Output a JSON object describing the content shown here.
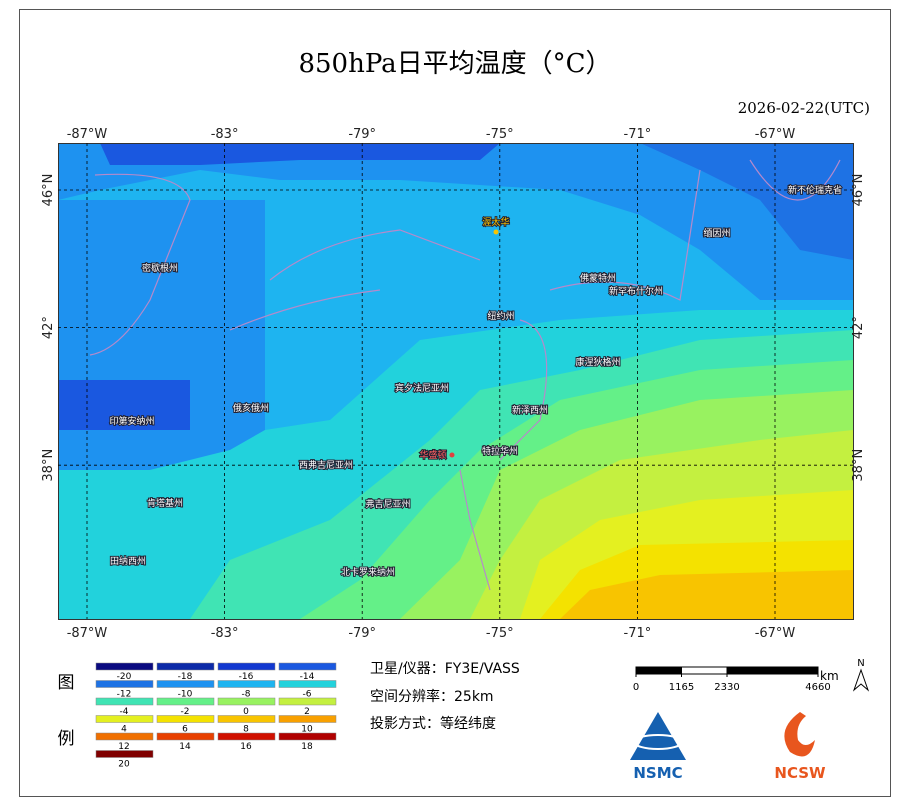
{
  "title": "850hPa日平均温度（°C）",
  "date": "2026-02-22(UTC)",
  "map": {
    "lon_ticks": [
      {
        "value": -87,
        "label": "-87°W"
      },
      {
        "value": -83,
        "label": "-83°"
      },
      {
        "value": -79,
        "label": "-79°"
      },
      {
        "value": -75,
        "label": "-75°"
      },
      {
        "value": -71,
        "label": "-71°"
      },
      {
        "value": -67,
        "label": "-67°W"
      }
    ],
    "lat_ticks": [
      {
        "value": 46,
        "label": "46°N"
      },
      {
        "value": 42,
        "label": "42°"
      },
      {
        "value": 38,
        "label": "38°N"
      }
    ],
    "places": [
      "渥太华",
      "密歇根州",
      "缅因州",
      "佛蒙特州",
      "新罕布什尔州",
      "纽约州",
      "康涅狄格州",
      "宾夕法尼亚州",
      "新泽西州",
      "俄亥俄州",
      "印第安纳州",
      "华盛顿",
      "特拉华州",
      "西弗吉尼亚州",
      "肯塔基州",
      "弗吉尼亚州",
      "田纳西州",
      "北卡罗来纳州",
      "新不伦瑞克省"
    ]
  },
  "legend": {
    "title": [
      "图",
      "例"
    ],
    "items": [
      {
        "value": -20,
        "color": "#0a0a80"
      },
      {
        "value": -18,
        "color": "#0c2aa8"
      },
      {
        "value": -16,
        "color": "#1238d0"
      },
      {
        "value": -14,
        "color": "#1a58e0"
      },
      {
        "value": -12,
        "color": "#1e72e4"
      },
      {
        "value": -10,
        "color": "#1e92f0"
      },
      {
        "value": -8,
        "color": "#1eb4f0"
      },
      {
        "value": -6,
        "color": "#22d2dc"
      },
      {
        "value": -4,
        "color": "#40e4b4"
      },
      {
        "value": -2,
        "color": "#64f088"
      },
      {
        "value": 0,
        "color": "#98f260"
      },
      {
        "value": 2,
        "color": "#c4f040"
      },
      {
        "value": 4,
        "color": "#e4f020"
      },
      {
        "value": 6,
        "color": "#f4e200"
      },
      {
        "value": 8,
        "color": "#f8c400"
      },
      {
        "value": 10,
        "color": "#f8a000"
      },
      {
        "value": 12,
        "color": "#f07000"
      },
      {
        "value": 14,
        "color": "#e84000"
      },
      {
        "value": 16,
        "color": "#d01000"
      },
      {
        "value": 18,
        "color": "#b00000"
      },
      {
        "value": 20,
        "color": "#800000"
      }
    ]
  },
  "info": [
    "卫星/仪器：FY3E/VASS",
    "空间分辨率：25km",
    "投影方式：等经纬度"
  ],
  "scale": {
    "ticks": [
      0,
      1165,
      2330,
      4660
    ],
    "unit": "km"
  },
  "north": "N",
  "logos": [
    "NSMC",
    "NCSW"
  ]
}
